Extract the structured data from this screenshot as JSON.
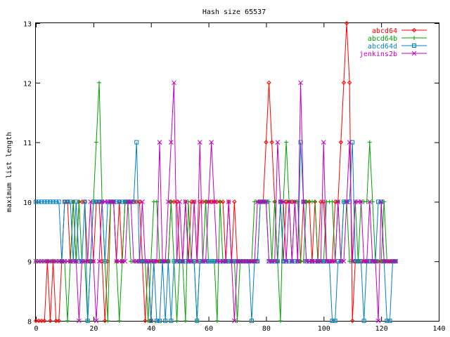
{
  "chart_data": {
    "type": "line",
    "title": "Hash size 65537",
    "xlabel": "",
    "ylabel": "maximum list length",
    "xlim": [
      0,
      140
    ],
    "ylim": [
      8,
      13
    ],
    "xticks": [
      0,
      20,
      40,
      60,
      80,
      100,
      120,
      140
    ],
    "yticks": [
      8,
      9,
      10,
      11,
      12,
      13
    ],
    "grid": false,
    "legend_position": "top-right",
    "series": [
      {
        "name": "abcd64",
        "color": "#ff0000",
        "marker": "diamond",
        "values": [
          8,
          8,
          8,
          8,
          9,
          8,
          9,
          8,
          8,
          9,
          10,
          10,
          9,
          10,
          9,
          10,
          10,
          10,
          9,
          9,
          9,
          10,
          10,
          9,
          8,
          9,
          10,
          10,
          9,
          10,
          9,
          10,
          10,
          10,
          10,
          10,
          10,
          9,
          8,
          9,
          8,
          9,
          9,
          9,
          9,
          9,
          9,
          10,
          10,
          10,
          9,
          9,
          10,
          9,
          10,
          10,
          9,
          10,
          10,
          10,
          10,
          10,
          10,
          10,
          10,
          10,
          9,
          10,
          9,
          10,
          9,
          9,
          9,
          9,
          9,
          9,
          9,
          9,
          10,
          10,
          11,
          12,
          11,
          10,
          9,
          10,
          9,
          10,
          10,
          10,
          10,
          9,
          9,
          10,
          10,
          10,
          9,
          10,
          9,
          10,
          10,
          9,
          9,
          9,
          10,
          10,
          11,
          12,
          13,
          12,
          8,
          9,
          9,
          9,
          9,
          9,
          9,
          9,
          9,
          9,
          9,
          9,
          9,
          9,
          9,
          9
        ]
      },
      {
        "name": "abcd64b",
        "color": "#00a000",
        "marker": "plus",
        "values": [
          9,
          9,
          9,
          9,
          9,
          9,
          9,
          9,
          9,
          9,
          9,
          8,
          9,
          10,
          9,
          10,
          9,
          9,
          8,
          9,
          10,
          11,
          12,
          10,
          9,
          8,
          10,
          10,
          9,
          8,
          9,
          10,
          10,
          9,
          9,
          9,
          9,
          9,
          9,
          8,
          9,
          10,
          10,
          9,
          9,
          9,
          9,
          10,
          9,
          8,
          9,
          9,
          8,
          10,
          9,
          9,
          8,
          9,
          9,
          10,
          9,
          9,
          9,
          8,
          10,
          9,
          9,
          9,
          9,
          9,
          8,
          9,
          9,
          9,
          9,
          9,
          10,
          10,
          10,
          10,
          10,
          10,
          9,
          10,
          9,
          8,
          10,
          11,
          10,
          9,
          10,
          10,
          9,
          9,
          10,
          10,
          10,
          10,
          9,
          9,
          9,
          10,
          10,
          10,
          9,
          10,
          9,
          10,
          10,
          9,
          9,
          10,
          9,
          10,
          10,
          10,
          11,
          10,
          9,
          9,
          9,
          10,
          9,
          9,
          9,
          9
        ]
      },
      {
        "name": "abcd64d",
        "color": "#0080c0",
        "marker": "square",
        "values": [
          10,
          10,
          10,
          10,
          10,
          10,
          10,
          10,
          10,
          9,
          10,
          10,
          10,
          9,
          10,
          9,
          9,
          10,
          8,
          9,
          10,
          10,
          10,
          10,
          9,
          10,
          10,
          10,
          10,
          10,
          10,
          10,
          10,
          10,
          10,
          11,
          9,
          9,
          9,
          9,
          8,
          9,
          8,
          8,
          9,
          8,
          9,
          8,
          9,
          9,
          9,
          9,
          9,
          9,
          9,
          9,
          8,
          9,
          9,
          9,
          9,
          9,
          9,
          9,
          9,
          9,
          9,
          9,
          9,
          9,
          9,
          9,
          9,
          9,
          9,
          8,
          9,
          9,
          10,
          10,
          10,
          9,
          9,
          9,
          9,
          10,
          9,
          9,
          9,
          9,
          9,
          9,
          11,
          10,
          9,
          9,
          9,
          9,
          9,
          9,
          9,
          9,
          9,
          8,
          8,
          9,
          9,
          10,
          10,
          10,
          11,
          9,
          9,
          9,
          8,
          9,
          9,
          9,
          9,
          10,
          10,
          9,
          8,
          8,
          9,
          9
        ]
      },
      {
        "name": "jenkins2b",
        "color": "#c000c0",
        "marker": "cross",
        "values": [
          9,
          9,
          9,
          9,
          9,
          9,
          9,
          9,
          9,
          9,
          9,
          9,
          9,
          9,
          9,
          8,
          9,
          9,
          9,
          10,
          9,
          8,
          9,
          10,
          10,
          10,
          10,
          10,
          9,
          9,
          9,
          9,
          10,
          10,
          9,
          9,
          9,
          10,
          9,
          9,
          9,
          9,
          9,
          11,
          9,
          9,
          10,
          11,
          12,
          9,
          10,
          9,
          10,
          9,
          9,
          10,
          9,
          11,
          9,
          9,
          10,
          11,
          10,
          9,
          9,
          9,
          9,
          10,
          9,
          8,
          9,
          9,
          9,
          9,
          9,
          9,
          9,
          10,
          10,
          10,
          10,
          9,
          9,
          9,
          11,
          10,
          10,
          9,
          10,
          9,
          10,
          9,
          12,
          10,
          9,
          9,
          9,
          9,
          9,
          9,
          11,
          9,
          9,
          9,
          9,
          10,
          9,
          9,
          10,
          11,
          9,
          10,
          10,
          10,
          9,
          9,
          10,
          9,
          9,
          8,
          10,
          9,
          9,
          9,
          9,
          9
        ]
      }
    ]
  }
}
